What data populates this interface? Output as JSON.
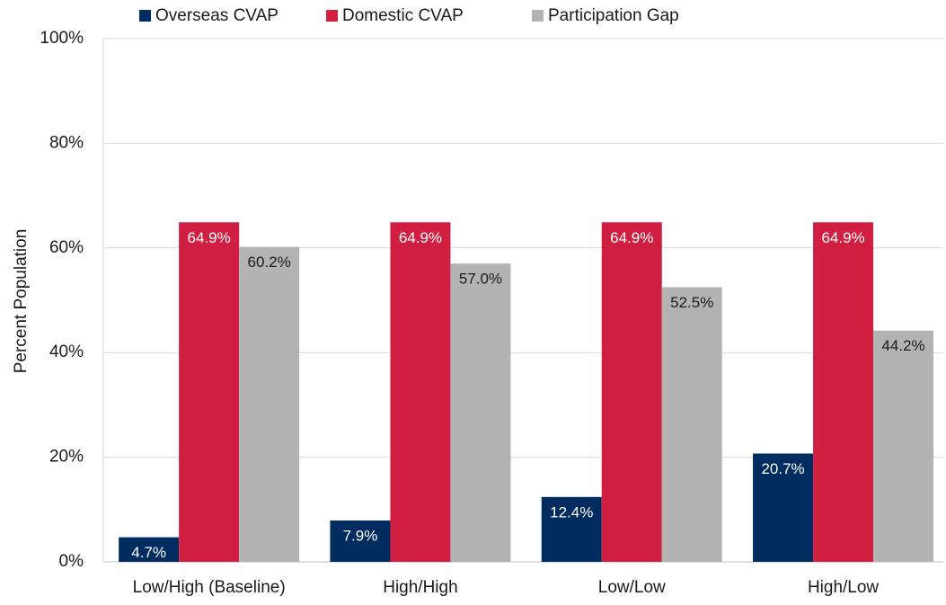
{
  "chart_data": {
    "type": "bar",
    "y_label": "Percent Population",
    "categories": [
      "Low/High (Baseline)",
      "High/High",
      "Low/Low",
      "High/Low"
    ],
    "series": [
      {
        "name": "Overseas CVAP",
        "color": "#002c5f",
        "values": [
          4.7,
          7.9,
          12.4,
          20.7
        ],
        "value_labels": [
          "4.7%",
          "7.9%",
          "12.4%",
          "20.7%"
        ]
      },
      {
        "name": "Domestic CVAP",
        "color": "#d11f42",
        "values": [
          64.9,
          64.9,
          64.9,
          64.9
        ],
        "value_labels": [
          "64.9%",
          "64.9%",
          "64.9%",
          "64.9%"
        ]
      },
      {
        "name": "Participation Gap",
        "color": "#b3b3b3",
        "values": [
          60.2,
          57.0,
          52.5,
          44.2
        ],
        "value_labels": [
          "60.2%",
          "57.0%",
          "52.5%",
          "44.2%"
        ]
      }
    ],
    "ylim": [
      0,
      100
    ],
    "yticks": [
      {
        "value": 0,
        "label": "0%"
      },
      {
        "value": 20,
        "label": "20%"
      },
      {
        "value": 40,
        "label": "40%"
      },
      {
        "value": 60,
        "label": "60%"
      },
      {
        "value": 80,
        "label": "80%"
      },
      {
        "value": 100,
        "label": "100%"
      }
    ],
    "grid": true,
    "legend": "top"
  }
}
